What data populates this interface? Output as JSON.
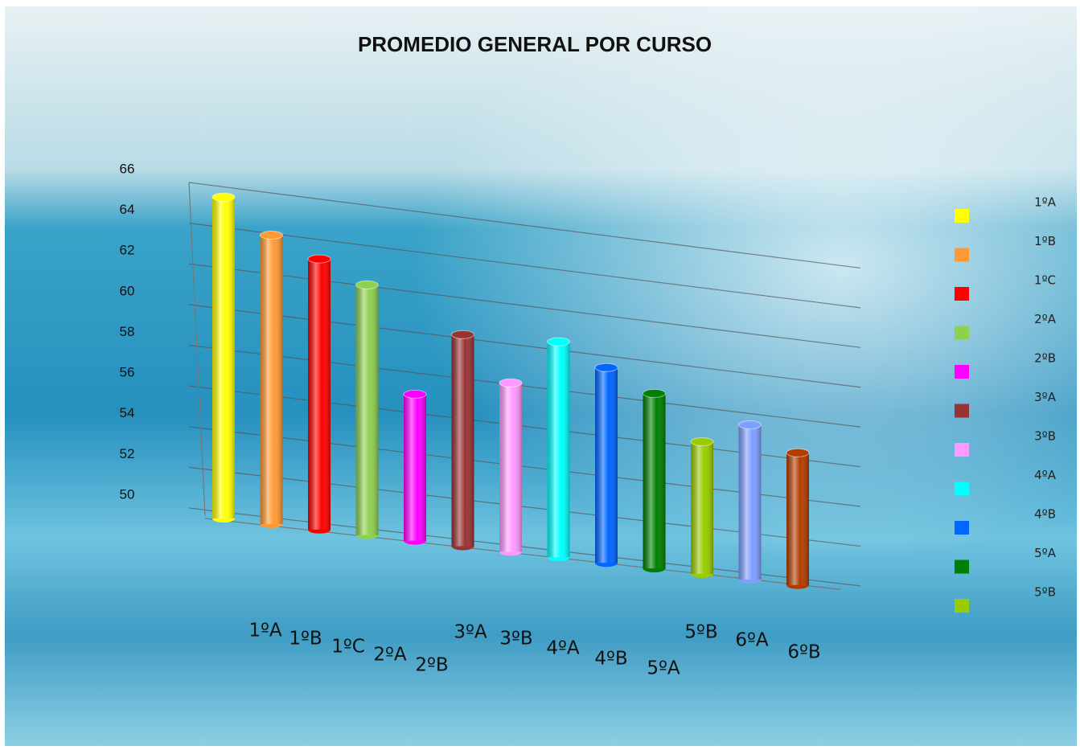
{
  "chart_data": {
    "type": "bar3d",
    "title": "PROMEDIO GENERAL POR CURSO",
    "categories": [
      "1ºA",
      "1ºB",
      "1ºC",
      "2ºA",
      "2ºB",
      "3ºA",
      "3ºB",
      "4ºA",
      "4ºB",
      "5ºA",
      "5ºB",
      "6ºA",
      "6ºB"
    ],
    "values": [
      65.8,
      64.2,
      63.3,
      62.3,
      57.2,
      60.4,
      58.3,
      60.6,
      59.6,
      58.6,
      56.5,
      57.6,
      56.5
    ],
    "colors": [
      "#ffff00",
      "#ff9933",
      "#ff0000",
      "#8fd14f",
      "#ff00ff",
      "#993333",
      "#ff99ff",
      "#00ffff",
      "#0066ff",
      "#008000",
      "#99cc00",
      "#7f9fff",
      "#b33c00"
    ],
    "ylim": [
      50,
      66
    ],
    "yticks": [
      50,
      52,
      54,
      56,
      58,
      60,
      62,
      64,
      66
    ],
    "grid": true
  }
}
